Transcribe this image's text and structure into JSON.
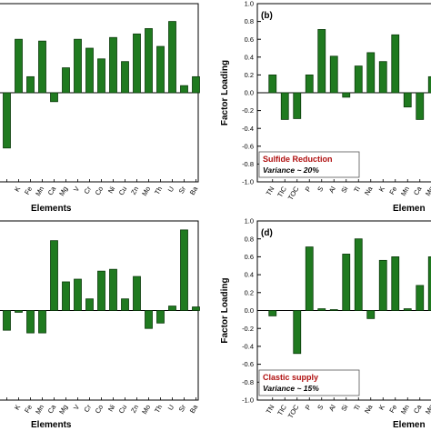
{
  "bar_color": "#1f7a1f",
  "bar_stroke": "#0a3a0a",
  "chart_data": [
    {
      "id": "a",
      "type": "bar",
      "panel_label": "",
      "categories": [
        "",
        "K",
        "Fe",
        "Mn",
        "Ca",
        "Mg",
        "V",
        "Cr",
        "Co",
        "Ni",
        "Cu",
        "Zn",
        "Mo",
        "Th",
        "U",
        "Sr",
        "Ba"
      ],
      "values": [
        -0.62,
        0.6,
        0.18,
        0.58,
        -0.1,
        0.28,
        0.6,
        0.5,
        0.38,
        0.62,
        0.35,
        0.66,
        0.72,
        0.52,
        0.8,
        0.08,
        0.18
      ],
      "ylim": [
        -1.0,
        1.0
      ],
      "yticks": [],
      "ylabel": "",
      "xlabel": "Elements",
      "note_title": "",
      "note_sub": ""
    },
    {
      "id": "b",
      "type": "bar",
      "panel_label": "(b)",
      "categories": [
        "TN",
        "TIC",
        "TOC",
        "P",
        "S",
        "Al",
        "Si",
        "Ti",
        "Na",
        "K",
        "Fe",
        "Mn",
        "Ca",
        "Mg"
      ],
      "values": [
        0.2,
        -0.3,
        -0.29,
        0.2,
        0.71,
        0.41,
        -0.05,
        0.3,
        0.45,
        0.35,
        0.65,
        -0.16,
        -0.3,
        0.18
      ],
      "ylim": [
        -1.0,
        1.0
      ],
      "yticks": [
        "-1.0",
        "-0.8",
        "-0.6",
        "-0.4",
        "-0.2",
        "0.0",
        "0.2",
        "0.4",
        "0.6",
        "0.8",
        "1.0"
      ],
      "ylabel": "Factor Loading",
      "xlabel": "Elemen",
      "note_title": "Sulfide Reduction",
      "note_sub": "Variance ~ 20%"
    },
    {
      "id": "c",
      "type": "bar",
      "panel_label": "",
      "categories": [
        "",
        "K",
        "Fe",
        "Mn",
        "Ca",
        "Mg",
        "V",
        "Cr",
        "Co",
        "Ni",
        "Cu",
        "Zn",
        "Mo",
        "Th",
        "U",
        "Sr",
        "Ba"
      ],
      "values": [
        -0.22,
        -0.02,
        -0.25,
        -0.25,
        0.78,
        0.32,
        0.35,
        0.13,
        0.44,
        0.46,
        0.13,
        0.38,
        -0.2,
        -0.14,
        0.05,
        0.9,
        0.04
      ],
      "ylim": [
        -1.0,
        1.0
      ],
      "yticks": [],
      "ylabel": "",
      "xlabel": "Elements",
      "note_title": "",
      "note_sub": ""
    },
    {
      "id": "d",
      "type": "bar",
      "panel_label": "(d)",
      "categories": [
        "TN",
        "TIC",
        "TOC",
        "P",
        "S",
        "Al",
        "Si",
        "Ti",
        "Na",
        "K",
        "Fe",
        "Mn",
        "Ca",
        "Mg"
      ],
      "values": [
        -0.06,
        0.0,
        -0.48,
        0.71,
        0.02,
        0.01,
        0.63,
        0.8,
        -0.09,
        0.56,
        0.6,
        0.02,
        0.28,
        0.6
      ],
      "ylim": [
        -1.0,
        1.0
      ],
      "yticks": [
        "-1.0",
        "-0.8",
        "-0.6",
        "-0.4",
        "-0.2",
        "0.0",
        "0.2",
        "0.4",
        "0.6",
        "0.8",
        "1.0"
      ],
      "ylabel": "Factor Loading",
      "xlabel": "Elemen",
      "note_title": "Clastic supply",
      "note_sub": "Variance ~ 15%"
    }
  ]
}
